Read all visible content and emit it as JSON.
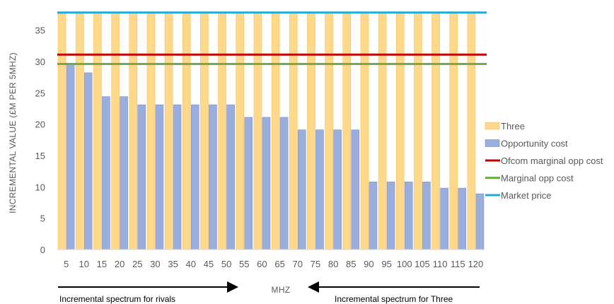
{
  "chart_data": {
    "type": "bar",
    "categories": [
      "5",
      "10",
      "15",
      "20",
      "25",
      "30",
      "35",
      "40",
      "45",
      "50",
      "55",
      "60",
      "65",
      "70",
      "75",
      "80",
      "85",
      "90",
      "95",
      "100",
      "105",
      "110",
      "115",
      "120"
    ],
    "series": [
      {
        "name": "Three",
        "kind": "bar",
        "color": "#FFD88A",
        "values": [
          37.7,
          37.7,
          37.7,
          37.7,
          37.7,
          37.7,
          37.7,
          37.7,
          37.7,
          37.7,
          37.7,
          37.7,
          37.7,
          37.7,
          37.7,
          37.7,
          37.7,
          37.7,
          37.7,
          37.7,
          37.7,
          37.7,
          37.7,
          37.7
        ]
      },
      {
        "name": "Opportunity cost",
        "kind": "bar",
        "color": "#9AAEDD",
        "values": [
          29.5,
          28.2,
          24.4,
          24.4,
          23.1,
          23.1,
          23.1,
          23.1,
          23.1,
          23.1,
          21.1,
          21.1,
          21.1,
          19.1,
          19.1,
          19.1,
          19.1,
          10.8,
          10.8,
          10.8,
          10.8,
          9.8,
          9.8,
          8.9
        ]
      },
      {
        "name": "Ofcom marginal opp cost",
        "kind": "line",
        "color": "#C00000",
        "value": 31.1
      },
      {
        "name": "Marginal opp cost",
        "kind": "line",
        "color": "#70AD47",
        "value": 29.6
      },
      {
        "name": "Market price",
        "kind": "line",
        "color": "#21ACD7",
        "value": 37.8
      }
    ],
    "ylabel": "INCREMENTAL VALUE (£M PER 5MHZ)",
    "xlabel": "MHZ",
    "yticks": [
      0,
      5,
      10,
      15,
      20,
      25,
      30,
      35
    ],
    "ylim": [
      0,
      38
    ],
    "grid": false,
    "legend_position": "right",
    "annotations": [
      {
        "text": "Incremental spectrum for rivals",
        "arrow": "right"
      },
      {
        "text": "Incremental spectrum for Three",
        "arrow": "left"
      }
    ]
  }
}
